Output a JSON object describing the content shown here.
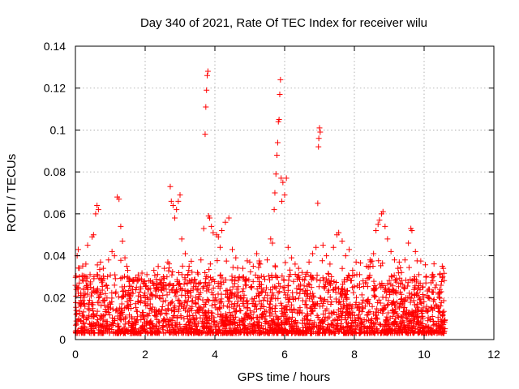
{
  "colors": {
    "points": "#ff0000",
    "axes": "#000000",
    "grid": "#a0a0a0"
  },
  "chart_data": {
    "type": "scatter",
    "title": "Day 340 of 2021, Rate Of TEC Index for receiver wilu",
    "xlabel": "GPS time / hours",
    "ylabel": "ROTI / TECUs",
    "xlim": [
      0,
      12
    ],
    "ylim": [
      0,
      0.14
    ],
    "xticks": [
      0,
      2,
      4,
      6,
      8,
      10,
      12
    ],
    "yticks": [
      0,
      0.02,
      0.04,
      0.06,
      0.08,
      0.1,
      0.12,
      0.14
    ],
    "xtick_labels": [
      "0",
      "2",
      "4",
      "6",
      "8",
      "10",
      "12"
    ],
    "ytick_labels": [
      "0",
      "0.02",
      "0.04",
      "0.06",
      "0.08",
      "0.1",
      "0.12",
      "0.14"
    ],
    "grid": true,
    "marker": "plus",
    "data_extent_x": [
      0,
      10.6
    ],
    "series": [
      {
        "values": [
          [
            0.05,
            0.04
          ],
          [
            0.08,
            0.043
          ],
          [
            0.15,
            0.021
          ],
          [
            0.22,
            0.028
          ],
          [
            0.3,
            0.036
          ],
          [
            0.35,
            0.045
          ],
          [
            0.42,
            0.031
          ],
          [
            0.48,
            0.049
          ],
          [
            0.52,
            0.05
          ],
          [
            0.58,
            0.06
          ],
          [
            0.62,
            0.064
          ],
          [
            0.66,
            0.062
          ],
          [
            0.72,
            0.037
          ],
          [
            0.8,
            0.034
          ],
          [
            0.88,
            0.026
          ],
          [
            0.95,
            0.038
          ],
          [
            1.05,
            0.042
          ],
          [
            1.12,
            0.04
          ],
          [
            1.2,
            0.068
          ],
          [
            1.25,
            0.067
          ],
          [
            1.3,
            0.054
          ],
          [
            1.35,
            0.047
          ],
          [
            1.42,
            0.039
          ],
          [
            1.5,
            0.033
          ],
          [
            1.55,
            0.028
          ],
          [
            1.65,
            0.022
          ],
          [
            1.75,
            0.025
          ],
          [
            1.85,
            0.029
          ],
          [
            1.95,
            0.027
          ],
          [
            2.05,
            0.031
          ],
          [
            2.15,
            0.028
          ],
          [
            2.25,
            0.033
          ],
          [
            2.35,
            0.025
          ],
          [
            2.45,
            0.027
          ],
          [
            2.55,
            0.034
          ],
          [
            2.65,
            0.037
          ],
          [
            2.72,
            0.073
          ],
          [
            2.75,
            0.066
          ],
          [
            2.8,
            0.064
          ],
          [
            2.85,
            0.058
          ],
          [
            2.9,
            0.062
          ],
          [
            2.95,
            0.066
          ],
          [
            3.0,
            0.069
          ],
          [
            3.05,
            0.048
          ],
          [
            3.15,
            0.041
          ],
          [
            3.25,
            0.033
          ],
          [
            3.4,
            0.027
          ],
          [
            3.5,
            0.032
          ],
          [
            3.6,
            0.038
          ],
          [
            3.68,
            0.053
          ],
          [
            3.72,
            0.098
          ],
          [
            3.74,
            0.111
          ],
          [
            3.76,
            0.119
          ],
          [
            3.78,
            0.126
          ],
          [
            3.8,
            0.128
          ],
          [
            3.82,
            0.059
          ],
          [
            3.85,
            0.058
          ],
          [
            3.9,
            0.054
          ],
          [
            3.95,
            0.051
          ],
          [
            4.05,
            0.05
          ],
          [
            4.1,
            0.049
          ],
          [
            4.15,
            0.044
          ],
          [
            4.2,
            0.052
          ],
          [
            4.3,
            0.056
          ],
          [
            4.4,
            0.058
          ],
          [
            4.5,
            0.043
          ],
          [
            4.6,
            0.039
          ],
          [
            4.7,
            0.03
          ],
          [
            4.8,
            0.034
          ],
          [
            4.9,
            0.029
          ],
          [
            5.0,
            0.037
          ],
          [
            5.1,
            0.035
          ],
          [
            5.2,
            0.041
          ],
          [
            5.3,
            0.036
          ],
          [
            5.4,
            0.03
          ],
          [
            5.5,
            0.038
          ],
          [
            5.6,
            0.048
          ],
          [
            5.65,
            0.046
          ],
          [
            5.7,
            0.062
          ],
          [
            5.72,
            0.07
          ],
          [
            5.75,
            0.079
          ],
          [
            5.78,
            0.088
          ],
          [
            5.8,
            0.094
          ],
          [
            5.82,
            0.104
          ],
          [
            5.84,
            0.105
          ],
          [
            5.86,
            0.117
          ],
          [
            5.88,
            0.124
          ],
          [
            5.9,
            0.077
          ],
          [
            5.92,
            0.066
          ],
          [
            5.95,
            0.075
          ],
          [
            6.0,
            0.069
          ],
          [
            6.05,
            0.077
          ],
          [
            6.1,
            0.044
          ],
          [
            6.2,
            0.039
          ],
          [
            6.3,
            0.036
          ],
          [
            6.4,
            0.034
          ],
          [
            6.5,
            0.032
          ],
          [
            6.6,
            0.03
          ],
          [
            6.7,
            0.037
          ],
          [
            6.8,
            0.041
          ],
          [
            6.9,
            0.044
          ],
          [
            6.95,
            0.065
          ],
          [
            6.97,
            0.092
          ],
          [
            6.98,
            0.096
          ],
          [
            7.0,
            0.101
          ],
          [
            7.02,
            0.099
          ],
          [
            7.1,
            0.045
          ],
          [
            7.2,
            0.04
          ],
          [
            7.3,
            0.036
          ],
          [
            7.4,
            0.044
          ],
          [
            7.5,
            0.05
          ],
          [
            7.55,
            0.051
          ],
          [
            7.65,
            0.047
          ],
          [
            7.75,
            0.04
          ],
          [
            7.85,
            0.043
          ],
          [
            7.95,
            0.033
          ],
          [
            8.05,
            0.037
          ],
          [
            8.15,
            0.031
          ],
          [
            8.25,
            0.028
          ],
          [
            8.35,
            0.035
          ],
          [
            8.45,
            0.038
          ],
          [
            8.55,
            0.041
          ],
          [
            8.62,
            0.052
          ],
          [
            8.68,
            0.055
          ],
          [
            8.72,
            0.057
          ],
          [
            8.78,
            0.06
          ],
          [
            8.82,
            0.061
          ],
          [
            8.88,
            0.054
          ],
          [
            8.95,
            0.048
          ],
          [
            9.05,
            0.042
          ],
          [
            9.15,
            0.038
          ],
          [
            9.25,
            0.034
          ],
          [
            9.35,
            0.032
          ],
          [
            9.45,
            0.038
          ],
          [
            9.55,
            0.046
          ],
          [
            9.62,
            0.053
          ],
          [
            9.65,
            0.052
          ],
          [
            9.75,
            0.042
          ],
          [
            9.85,
            0.031
          ],
          [
            9.95,
            0.025
          ],
          [
            10.05,
            0.027
          ],
          [
            10.15,
            0.024
          ],
          [
            10.25,
            0.028
          ],
          [
            10.35,
            0.026
          ],
          [
            10.45,
            0.031
          ],
          [
            10.52,
            0.035
          ],
          [
            10.55,
            0.034
          ]
        ]
      }
    ]
  }
}
